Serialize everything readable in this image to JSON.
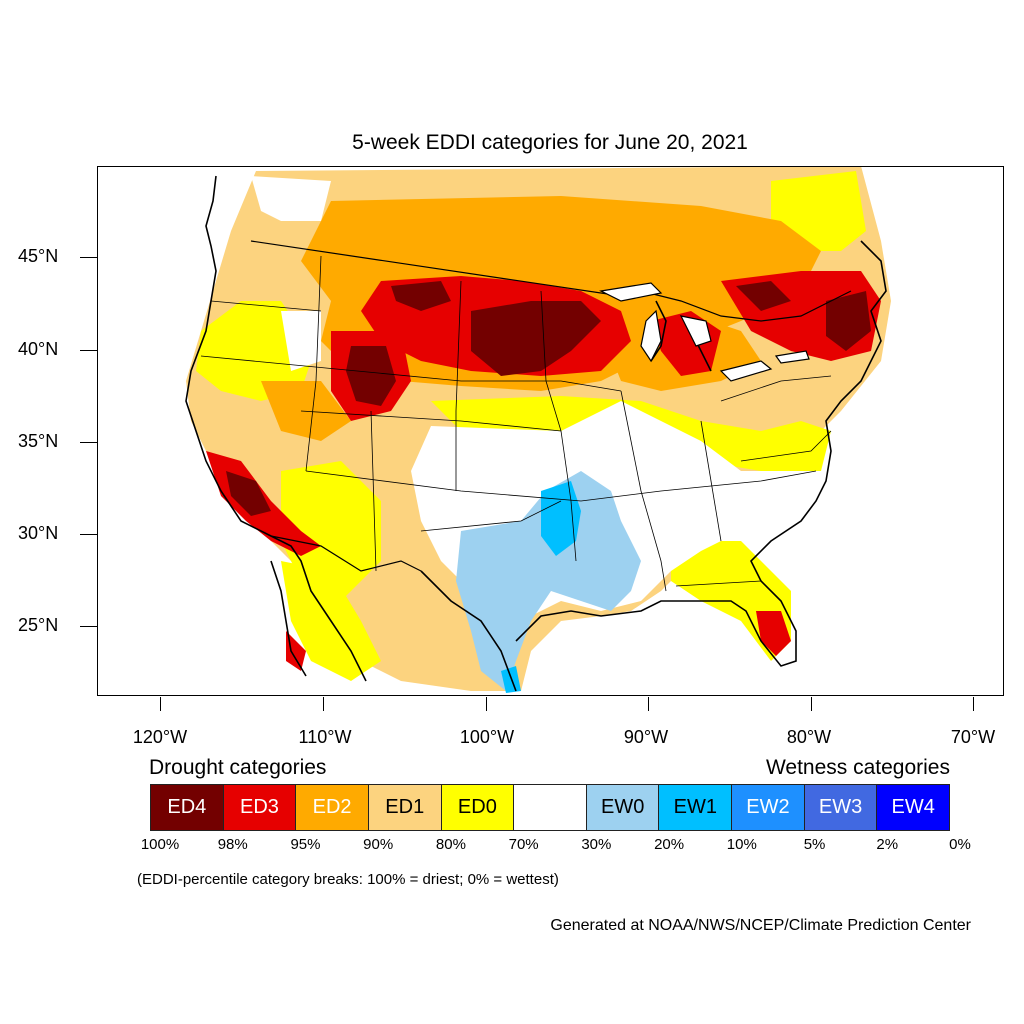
{
  "title": "5-week EDDI categories for June 20, 2021",
  "lat_labels": [
    "45°N",
    "40°N",
    "35°N",
    "30°N",
    "25°N"
  ],
  "lon_labels": [
    "120°W",
    "110°W",
    "100°W",
    "90°W",
    "80°W",
    "70°W"
  ],
  "legend": {
    "drought_heading": "Drought categories",
    "wetness_heading": "Wetness categories",
    "categories": [
      {
        "label": "ED4",
        "color": "#730000",
        "text_color": "#ffffff"
      },
      {
        "label": "ED3",
        "color": "#e60000",
        "text_color": "#ffffff"
      },
      {
        "label": "ED2",
        "color": "#ffaa00",
        "text_color": "#ffffff"
      },
      {
        "label": "ED1",
        "color": "#fcd37f",
        "text_color": "#000000"
      },
      {
        "label": "ED0",
        "color": "#ffff00",
        "text_color": "#000000"
      },
      {
        "label": "",
        "color": "#ffffff",
        "text_color": "#000000"
      },
      {
        "label": "EW0",
        "color": "#9dd1f0",
        "text_color": "#000000"
      },
      {
        "label": "EW1",
        "color": "#00bfff",
        "text_color": "#000000"
      },
      {
        "label": "EW2",
        "color": "#1e90ff",
        "text_color": "#ffffff"
      },
      {
        "label": "EW3",
        "color": "#4169e1",
        "text_color": "#ffffff"
      },
      {
        "label": "EW4",
        "color": "#0000ff",
        "text_color": "#ffffff"
      }
    ],
    "breaks": [
      "100%",
      "98%",
      "95%",
      "90%",
      "80%",
      "70%",
      "30%",
      "20%",
      "10%",
      "5%",
      "2%",
      "0%"
    ]
  },
  "note": "(EDDI-percentile category breaks: 100% = driest; 0% = wettest)",
  "credit": "Generated at NOAA/NWS/NCEP/Climate Prediction Center"
}
